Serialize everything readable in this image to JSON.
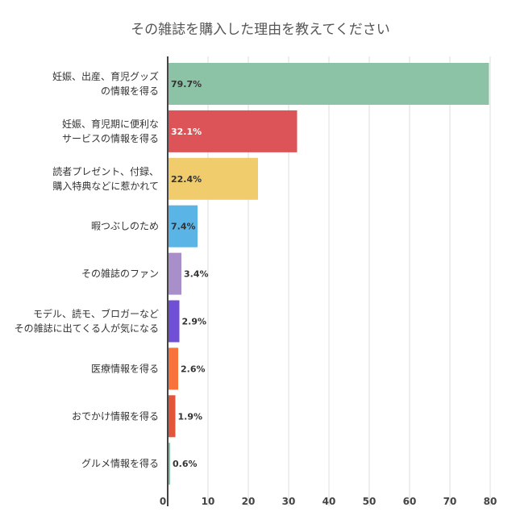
{
  "chart_data": {
    "type": "bar",
    "orientation": "horizontal",
    "title": "その雑誌を購入した理由を教えてください",
    "categories": [
      [
        "妊娠、出産、育児グッズ",
        "の情報を得る"
      ],
      [
        "妊娠、育児期に便利な",
        "サービスの情報を得る"
      ],
      [
        "読者プレゼント、付録、",
        "購入特典などに惹かれて"
      ],
      [
        "暇つぶしのため"
      ],
      [
        "その雑誌のファン"
      ],
      [
        "モデル、読モ、ブロガーなど",
        "その雑誌に出てくる人が気になる"
      ],
      [
        "医療情報を得る"
      ],
      [
        "おでかけ情報を得る"
      ],
      [
        "グルメ情報を得る"
      ]
    ],
    "values": [
      79.7,
      32.1,
      22.4,
      7.4,
      3.4,
      2.9,
      2.6,
      1.9,
      0.6
    ],
    "data_labels": [
      "79.7%",
      "32.1%",
      "22.4%",
      "7.4%",
      "3.4%",
      "2.9%",
      "2.6%",
      "1.9%",
      "0.6%"
    ],
    "colors": [
      "#8cc3a6",
      "#dc5457",
      "#f1cc6d",
      "#5ab4e6",
      "#a98fc9",
      "#6f4fd6",
      "#f8733b",
      "#e2553a",
      "#8cc3a6"
    ],
    "label_colors": [
      "#333333",
      "#ffffff",
      "#333333",
      "#333333",
      "#333333",
      "#333333",
      "#333333",
      "#333333",
      "#333333"
    ],
    "xlim": [
      0,
      80
    ],
    "x_ticks": [
      "0",
      "10",
      "20",
      "30",
      "40",
      "50",
      "60",
      "70",
      "80"
    ],
    "grid": true
  }
}
